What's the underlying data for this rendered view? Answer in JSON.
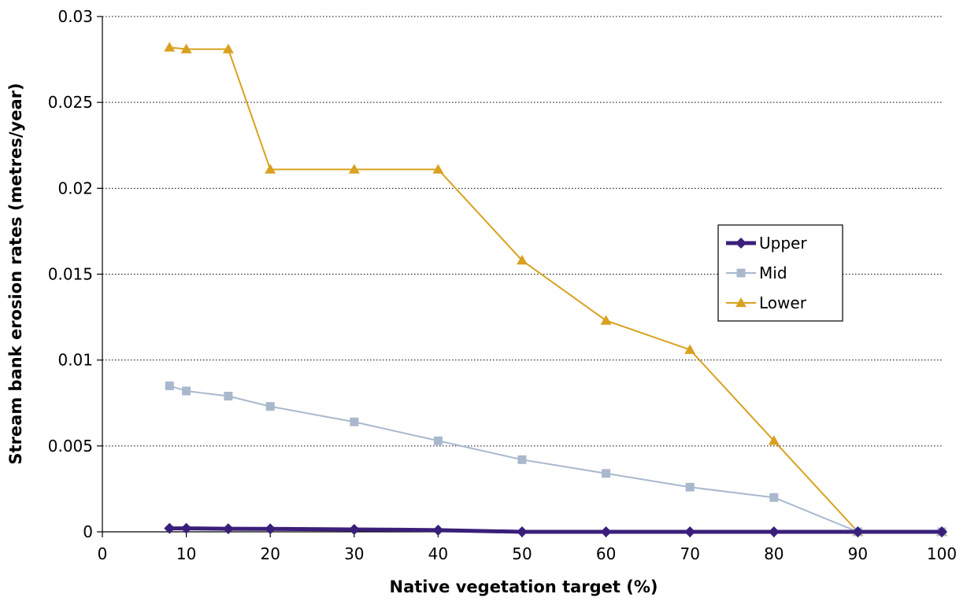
{
  "chart_data": {
    "type": "line",
    "xlabel": "Native vegetation target (%)",
    "ylabel": "Stream bank erosion rates (metres/year)",
    "xlim": [
      0,
      100
    ],
    "ylim": [
      0,
      0.03
    ],
    "x_ticks": [
      0,
      10,
      20,
      30,
      40,
      50,
      60,
      70,
      80,
      90,
      100
    ],
    "x_tick_labels": [
      "0",
      "10",
      "20",
      "30",
      "40",
      "50",
      "60",
      "70",
      "80",
      "90",
      "100"
    ],
    "y_ticks": [
      0,
      0.005,
      0.01,
      0.015,
      0.02,
      0.025,
      0.03
    ],
    "y_tick_labels": [
      "0",
      "0.005",
      "0.01",
      "0.015",
      "0.02",
      "0.025",
      "0.03"
    ],
    "grid": "horizontal dotted",
    "legend_position": "right",
    "x": [
      8,
      10,
      15,
      20,
      30,
      40,
      50,
      60,
      70,
      80,
      90,
      100
    ],
    "series": [
      {
        "name": "Upper",
        "color": "#3a1f7a",
        "marker": "diamond",
        "line_width": 5,
        "values": [
          0.0002,
          0.0002,
          0.00018,
          0.00017,
          0.00014,
          0.0001,
          0.0,
          0.0,
          0.0,
          0.0,
          0.0,
          0.0
        ]
      },
      {
        "name": "Mid",
        "color": "#a9b8cc",
        "marker": "square",
        "line_width": 2,
        "values": [
          0.0085,
          0.0082,
          0.0079,
          0.0073,
          0.0064,
          0.0053,
          0.0042,
          0.0034,
          0.0026,
          0.002,
          0.0,
          0.0
        ]
      },
      {
        "name": "Lower",
        "color": "#d9a11f",
        "marker": "triangle",
        "line_width": 2,
        "values": [
          0.0282,
          0.0281,
          0.0281,
          0.0211,
          0.0211,
          0.0211,
          0.0158,
          0.0123,
          0.0106,
          0.0053,
          0.0,
          0.0
        ]
      }
    ]
  }
}
